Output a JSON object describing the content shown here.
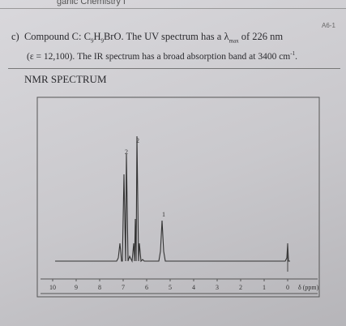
{
  "header": {
    "course": "ganic Chemistry I",
    "page_code": "A6-1"
  },
  "problem": {
    "label": "c)",
    "lead": "Compound C:",
    "c": "C",
    "c_n": "9",
    "h": "H",
    "h_n": "9",
    "rest": "BrO.",
    "uv_text": "The UV spectrum has a λ",
    "lambda_sub": "max",
    "uv_end": "of 226 nm",
    "line2": "(ε = 12,100). The IR spectrum has a broad absorption band at 3400 cm",
    "ir_sup": "-1",
    "end": "."
  },
  "section": "NMR SPECTRUM",
  "spectrum": {
    "peak_labels": [
      "2",
      "2",
      "1"
    ],
    "axis_ticks": [
      10,
      9,
      8,
      7,
      6,
      5,
      4,
      3,
      2,
      1,
      0
    ],
    "axis_label": "δ (ppm)"
  }
}
